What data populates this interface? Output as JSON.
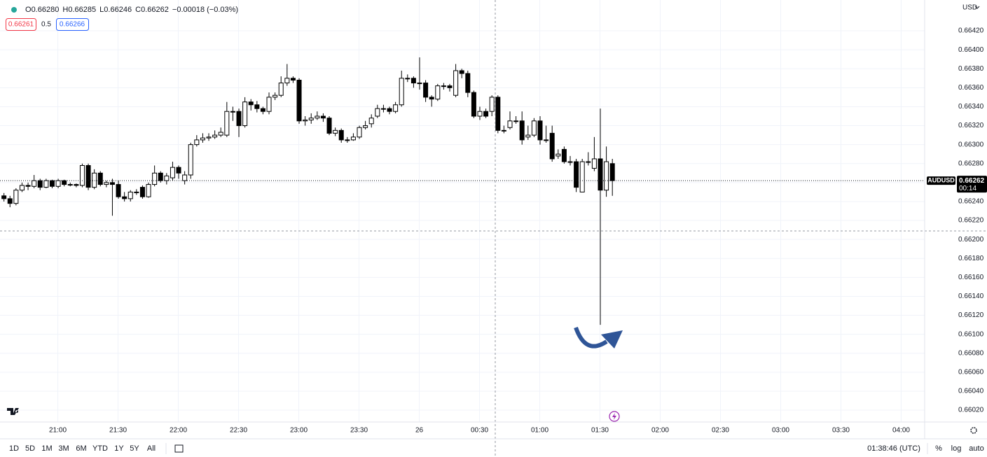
{
  "header": {
    "open_label": "O",
    "open": "0.66280",
    "high_label": "H",
    "high": "0.66285",
    "low_label": "L",
    "low": "0.66246",
    "close_label": "C",
    "close": "0.66262",
    "change": "−0.00018 (−0.03%)"
  },
  "order_panel": {
    "sell": "0.66261",
    "spread": "0.5",
    "buy": "0.66266"
  },
  "currency": "USD",
  "toolbar": {
    "ranges": [
      "1D",
      "5D",
      "1M",
      "3M",
      "6M",
      "YTD",
      "1Y",
      "5Y",
      "All"
    ],
    "clock": "01:38:46 (UTC)",
    "options": [
      "%",
      "log",
      "auto"
    ]
  },
  "chart_data": {
    "type": "candlestick",
    "series": [
      {
        "name": "AUDUSD",
        "up_color": "#ffffff",
        "down_color": "#000000",
        "border_color": "#000000",
        "open": [
          0.66246,
          0.66243,
          0.66238,
          0.66252,
          0.66257,
          0.66256,
          0.66262,
          0.66255,
          0.66262,
          0.66256,
          0.66262,
          0.66258,
          0.66258,
          0.66257,
          0.66278,
          0.66255,
          0.6627,
          0.66258,
          0.6626,
          0.66258,
          0.66245,
          0.66243,
          0.6625,
          0.66255,
          0.66245,
          0.66258,
          0.6627,
          0.66262,
          0.66265,
          0.66276,
          0.66262,
          0.66268,
          0.663,
          0.66305,
          0.66307,
          0.66308,
          0.6631,
          0.6631,
          0.66335,
          0.66335,
          0.6632,
          0.66345,
          0.66342,
          0.66338,
          0.66335,
          0.6635,
          0.66352,
          0.66365,
          0.6637,
          0.66368,
          0.66325,
          0.66326,
          0.66328,
          0.6633,
          0.66328,
          0.66312,
          0.66315,
          0.66305,
          0.66305,
          0.66308,
          0.66318,
          0.66322,
          0.6633,
          0.66338,
          0.66338,
          0.66335,
          0.66342,
          0.6637,
          0.6637,
          0.66365,
          0.66365,
          0.6635,
          0.66348,
          0.66362,
          0.66362,
          0.66352,
          0.66378,
          0.66375,
          0.66355,
          0.6633,
          0.66335,
          0.66335,
          0.6635,
          0.66315,
          0.66318,
          0.66325,
          0.66325,
          0.66308,
          0.6631,
          0.66325,
          0.66305,
          0.66312,
          0.66288,
          0.66295,
          0.66282,
          0.66282,
          0.6625,
          0.66282,
          0.66275,
          0.66285,
          0.66252,
          0.6628
        ],
        "high": [
          0.66249,
          0.66246,
          0.66254,
          0.6626,
          0.6626,
          0.66268,
          0.66264,
          0.66264,
          0.66263,
          0.66264,
          0.66263,
          0.6626,
          0.66259,
          0.6628,
          0.6628,
          0.66274,
          0.66272,
          0.66262,
          0.66264,
          0.66262,
          0.6625,
          0.66252,
          0.66253,
          0.66257,
          0.6626,
          0.66278,
          0.66272,
          0.6627,
          0.66282,
          0.66278,
          0.66272,
          0.66302,
          0.6631,
          0.66312,
          0.66312,
          0.66315,
          0.66318,
          0.66345,
          0.6634,
          0.66338,
          0.6635,
          0.66348,
          0.66346,
          0.6634,
          0.66355,
          0.66355,
          0.66372,
          0.66385,
          0.66372,
          0.6637,
          0.6633,
          0.66333,
          0.66335,
          0.66333,
          0.6633,
          0.66318,
          0.66317,
          0.66308,
          0.66312,
          0.6632,
          0.66325,
          0.66332,
          0.66342,
          0.66342,
          0.6634,
          0.66345,
          0.66378,
          0.66374,
          0.66372,
          0.66392,
          0.66368,
          0.66352,
          0.66364,
          0.66365,
          0.66364,
          0.66385,
          0.6638,
          0.66378,
          0.66357,
          0.6634,
          0.66338,
          0.66352,
          0.66352,
          0.6632,
          0.66335,
          0.6633,
          0.66335,
          0.6632,
          0.66328,
          0.6633,
          0.6632,
          0.6632,
          0.66295,
          0.66298,
          0.66288,
          0.66285,
          0.66285,
          0.66292,
          0.66308,
          0.66338,
          0.66298,
          0.66285
        ],
        "low": [
          0.6624,
          0.66234,
          0.66236,
          0.6625,
          0.66252,
          0.66254,
          0.66252,
          0.66254,
          0.66254,
          0.66254,
          0.66256,
          0.66256,
          0.66255,
          0.66255,
          0.66252,
          0.66253,
          0.66256,
          0.66255,
          0.66225,
          0.66243,
          0.6624,
          0.6624,
          0.66247,
          0.66243,
          0.66244,
          0.66256,
          0.6626,
          0.66258,
          0.66262,
          0.66264,
          0.66258,
          0.66264,
          0.66298,
          0.66302,
          0.66304,
          0.66306,
          0.66308,
          0.66308,
          0.66325,
          0.66308,
          0.66318,
          0.66336,
          0.66334,
          0.66332,
          0.66332,
          0.66347,
          0.6635,
          0.66362,
          0.66365,
          0.66322,
          0.6632,
          0.66322,
          0.66326,
          0.66324,
          0.6631,
          0.66309,
          0.66302,
          0.66302,
          0.66304,
          0.66306,
          0.66316,
          0.66318,
          0.66328,
          0.66334,
          0.66332,
          0.66333,
          0.6634,
          0.66366,
          0.6636,
          0.66358,
          0.66345,
          0.6634,
          0.66346,
          0.66358,
          0.66356,
          0.6635,
          0.6637,
          0.6635,
          0.66328,
          0.66326,
          0.66328,
          0.6633,
          0.66312,
          0.66312,
          0.66316,
          0.66322,
          0.663,
          0.66305,
          0.66308,
          0.663,
          0.66302,
          0.66282,
          0.66285,
          0.6628,
          0.66278,
          0.6625,
          0.6625,
          0.66278,
          0.66272,
          0.6611,
          0.66245,
          0.66246
        ],
        "close": [
          0.66243,
          0.66238,
          0.66252,
          0.66257,
          0.66256,
          0.66262,
          0.66255,
          0.66262,
          0.66256,
          0.66262,
          0.66258,
          0.66258,
          0.66257,
          0.66278,
          0.66255,
          0.6627,
          0.66258,
          0.6626,
          0.66258,
          0.66245,
          0.66243,
          0.6625,
          0.6625,
          0.66245,
          0.66258,
          0.6627,
          0.66262,
          0.66267,
          0.66276,
          0.6627,
          0.66268,
          0.663,
          0.66305,
          0.66307,
          0.66308,
          0.6631,
          0.66313,
          0.66335,
          0.66335,
          0.6632,
          0.66345,
          0.66342,
          0.66338,
          0.66335,
          0.6635,
          0.66352,
          0.66365,
          0.6637,
          0.66368,
          0.66325,
          0.66326,
          0.66328,
          0.6633,
          0.66328,
          0.66312,
          0.66315,
          0.66305,
          0.66305,
          0.66308,
          0.66318,
          0.6632,
          0.66328,
          0.66338,
          0.66338,
          0.66335,
          0.66342,
          0.6637,
          0.6637,
          0.66365,
          0.66365,
          0.6635,
          0.66348,
          0.66362,
          0.66362,
          0.6636,
          0.66378,
          0.66375,
          0.66355,
          0.6633,
          0.66335,
          0.6633,
          0.6635,
          0.66315,
          0.66315,
          0.66325,
          0.66325,
          0.66305,
          0.6631,
          0.66325,
          0.66305,
          0.66305,
          0.66285,
          0.6629,
          0.66282,
          0.66282,
          0.66255,
          0.66282,
          0.66282,
          0.66285,
          0.66252,
          0.66282,
          0.66262
        ]
      }
    ],
    "last_price": 0.66262,
    "countdown": "00:14",
    "xlim": [
      -0.6,
      152.9
    ],
    "xticks": [
      {
        "value": 9,
        "label": "21:00"
      },
      {
        "value": 19,
        "label": "21:30"
      },
      {
        "value": 29,
        "label": "22:00"
      },
      {
        "value": 39,
        "label": "22:30"
      },
      {
        "value": 49,
        "label": "23:00"
      },
      {
        "value": 59,
        "label": "23:30"
      },
      {
        "value": 69,
        "label": "26"
      },
      {
        "value": 79,
        "label": "00:30"
      },
      {
        "value": 89,
        "label": "01:00"
      },
      {
        "value": 99,
        "label": "01:30"
      },
      {
        "value": 109,
        "label": "02:00"
      },
      {
        "value": 119,
        "label": "02:30"
      },
      {
        "value": 129,
        "label": "03:00"
      },
      {
        "value": 139,
        "label": "03:30"
      },
      {
        "value": 149,
        "label": "04:00"
      }
    ],
    "ylim": [
      0.660075,
      0.664525
    ],
    "yticks": [
      {
        "value": 0.6642,
        "label": "0.66420"
      },
      {
        "value": 0.664,
        "label": "0.66400"
      },
      {
        "value": 0.6638,
        "label": "0.66380"
      },
      {
        "value": 0.6636,
        "label": "0.66360"
      },
      {
        "value": 0.6634,
        "label": "0.66340"
      },
      {
        "value": 0.6632,
        "label": "0.66320"
      },
      {
        "value": 0.663,
        "label": "0.66300"
      },
      {
        "value": 0.6628,
        "label": "0.66280"
      },
      {
        "value": 0.6626,
        "label": "0.66260"
      },
      {
        "value": 0.6624,
        "label": "0.66240"
      },
      {
        "value": 0.6622,
        "label": "0.66220"
      },
      {
        "value": 0.662,
        "label": "0.66200"
      },
      {
        "value": 0.6618,
        "label": "0.66180"
      },
      {
        "value": 0.6616,
        "label": "0.66160"
      },
      {
        "value": 0.6614,
        "label": "0.66140"
      },
      {
        "value": 0.6612,
        "label": "0.66120"
      },
      {
        "value": 0.661,
        "label": "0.66100"
      },
      {
        "value": 0.6608,
        "label": "0.66080"
      },
      {
        "value": 0.6606,
        "label": "0.66060"
      },
      {
        "value": 0.6604,
        "label": "0.66040"
      },
      {
        "value": 0.6602,
        "label": "0.66020"
      }
    ],
    "grid": true
  }
}
